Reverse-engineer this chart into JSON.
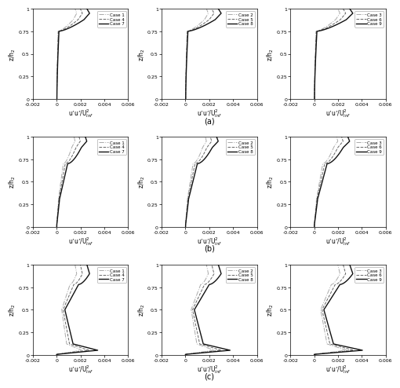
{
  "xlim": [
    -0.002,
    0.006
  ],
  "xticks": [
    -0.002,
    0,
    0.002,
    0.004,
    0.006
  ],
  "xticklabels": [
    "-0.002",
    "0",
    "0.002",
    "0.004",
    "0.006"
  ],
  "ylim": [
    0,
    1
  ],
  "yticks": [
    0,
    0.25,
    0.5,
    0.75,
    1
  ],
  "yticklabels": [
    "0",
    "0.25",
    "0.5",
    "0.75",
    "1"
  ],
  "row_labels": [
    "(a)",
    "(b)",
    "(c)"
  ],
  "legends": [
    [
      "Case 1",
      "Case 4",
      "Case 7"
    ],
    [
      "Case 2",
      "Case 5",
      "Case 8"
    ],
    [
      "Case 3",
      "Case 6",
      "Case 9"
    ]
  ],
  "line_styles": [
    {
      "ls": "-.",
      "lw": 0.7,
      "color": "#aaaaaa"
    },
    {
      "ls": "--",
      "lw": 0.7,
      "color": "#666666"
    },
    {
      "ls": "-",
      "lw": 1.0,
      "color": "#111111"
    }
  ],
  "background": "#ffffff",
  "ylabel": "z/h$_2$",
  "xlabel": "u’u’/U$^2_{inf}$"
}
